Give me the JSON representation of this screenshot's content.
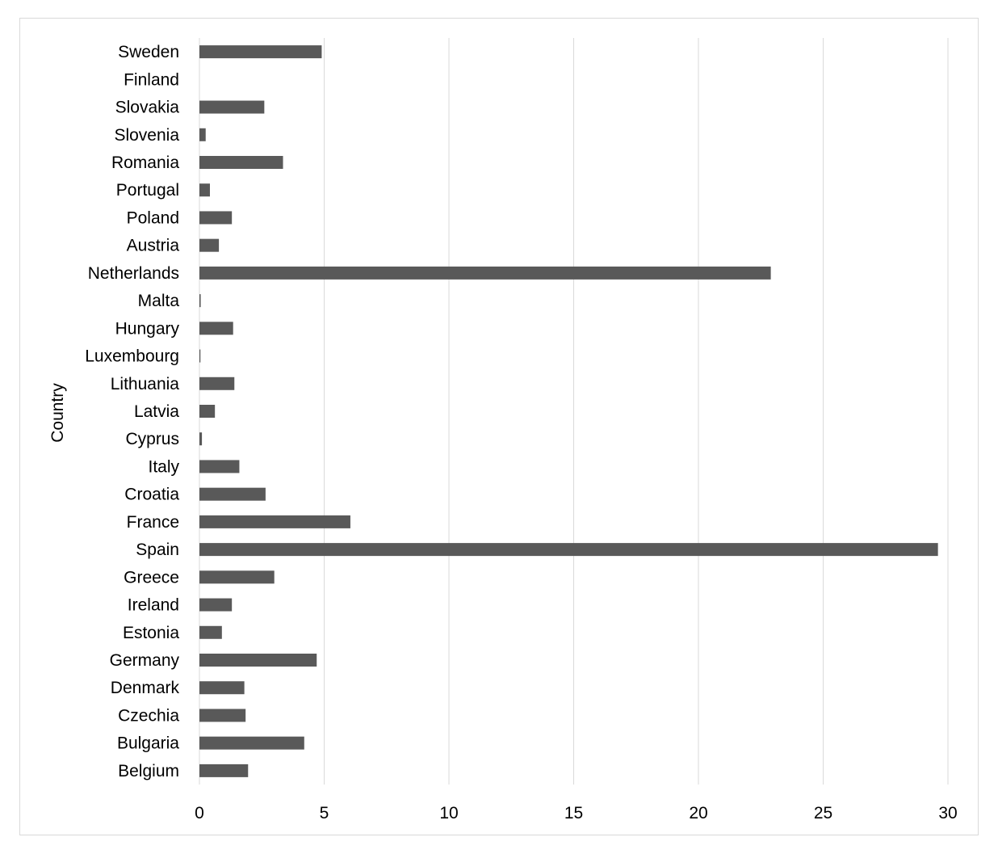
{
  "chart_data": {
    "type": "bar",
    "orientation": "horizontal",
    "title": "",
    "xlabel": "",
    "ylabel": "Country",
    "xlim": [
      0,
      30
    ],
    "x_ticks": [
      0,
      5,
      10,
      15,
      20,
      25,
      30
    ],
    "grid": "vertical",
    "legend": "none",
    "bar_color": "#595959",
    "categories": [
      "Sweden",
      "Finland",
      "Slovakia",
      "Slovenia",
      "Romania",
      "Portugal",
      "Poland",
      "Austria",
      "Netherlands",
      "Malta",
      "Hungary",
      "Luxembourg",
      "Lithuania",
      "Latvia",
      "Cyprus",
      "Italy",
      "Croatia",
      "France",
      "Spain",
      "Greece",
      "Ireland",
      "Estonia",
      "Germany",
      "Denmark",
      "Czechia",
      "Bulgaria",
      "Belgium"
    ],
    "values": [
      4.9,
      0.0,
      2.6,
      0.25,
      3.35,
      0.42,
      1.3,
      0.78,
      22.9,
      0.05,
      1.35,
      0.04,
      1.4,
      0.62,
      0.1,
      1.6,
      2.65,
      6.05,
      29.6,
      3.0,
      1.3,
      0.9,
      4.7,
      1.8,
      1.85,
      4.2,
      1.95
    ]
  }
}
